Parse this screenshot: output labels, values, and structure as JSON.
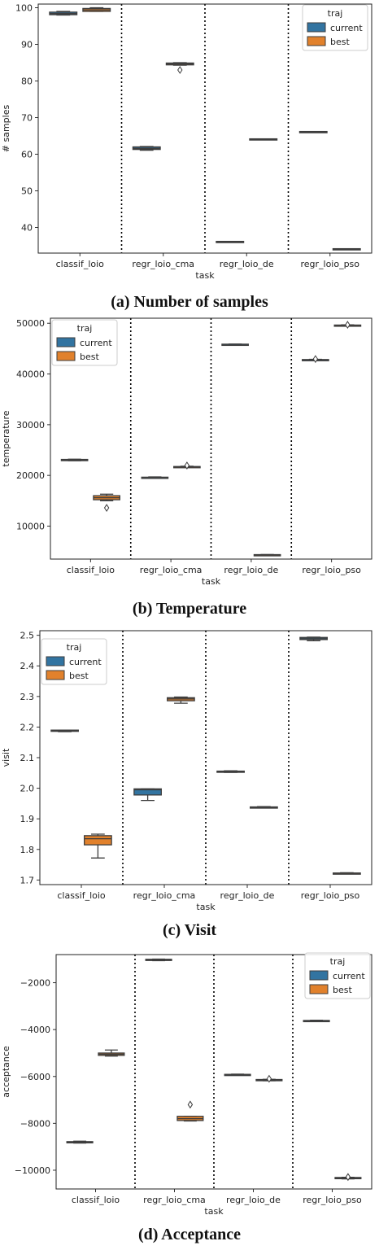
{
  "chart_data": [
    {
      "type": "box",
      "caption": "(a) Number of samples",
      "xlabel": "task",
      "ylabel": "# samples",
      "categories": [
        "classif_loio",
        "regr_loio_cma",
        "regr_loio_de",
        "regr_loio_pso"
      ],
      "ylim": [
        33,
        101
      ],
      "yticks": [
        40,
        50,
        60,
        70,
        80,
        90,
        100
      ],
      "yticklabels": [
        "40",
        "50",
        "60",
        "70",
        "80",
        "90",
        "100"
      ],
      "legend": {
        "title": "traj",
        "entries": [
          "current",
          "best"
        ],
        "position": "top-right"
      },
      "colors": {
        "current": "#3274a1",
        "best": "#e1812c"
      },
      "series": [
        {
          "name": "current",
          "boxes": [
            {
              "min": 98,
              "q1": 98.1,
              "median": 98.4,
              "q3": 98.8,
              "max": 99,
              "outliers": []
            },
            {
              "min": 61.1,
              "q1": 61.3,
              "median": 61.6,
              "q3": 62,
              "max": 62.1,
              "outliers": []
            },
            {
              "min": 36,
              "q1": 36,
              "median": 36.1,
              "q3": 36.2,
              "max": 36.2,
              "outliers": []
            },
            {
              "min": 66,
              "q1": 66,
              "median": 66.1,
              "q3": 66.2,
              "max": 66.2,
              "outliers": []
            }
          ]
        },
        {
          "name": "best",
          "boxes": [
            {
              "min": 99,
              "q1": 99,
              "median": 99.4,
              "q3": 99.8,
              "max": 100,
              "outliers": []
            },
            {
              "min": 84.3,
              "q1": 84.4,
              "median": 84.7,
              "q3": 84.9,
              "max": 85,
              "outliers": [
                83
              ]
            },
            {
              "min": 64,
              "q1": 64,
              "median": 64.1,
              "q3": 64.2,
              "max": 64.2,
              "outliers": []
            },
            {
              "min": 34,
              "q1": 34,
              "median": 34.1,
              "q3": 34.2,
              "max": 34.2,
              "outliers": []
            }
          ]
        }
      ]
    },
    {
      "type": "box",
      "caption": "(b) Temperature",
      "xlabel": "task",
      "ylabel": "temperature",
      "categories": [
        "classif_loio",
        "regr_loio_cma",
        "regr_loio_de",
        "regr_loio_pso"
      ],
      "ylim": [
        3500,
        51000
      ],
      "yticks": [
        10000,
        20000,
        30000,
        40000,
        50000
      ],
      "yticklabels": [
        "10000",
        "20000",
        "30000",
        "40000",
        "50000"
      ],
      "legend": {
        "title": "traj",
        "entries": [
          "current",
          "best"
        ],
        "position": "top-left"
      },
      "colors": {
        "current": "#3274a1",
        "best": "#e1812c"
      },
      "series": [
        {
          "name": "current",
          "boxes": [
            {
              "min": 22900,
              "q1": 22950,
              "median": 23050,
              "q3": 23150,
              "max": 23200,
              "outliers": []
            },
            {
              "min": 19500,
              "q1": 19550,
              "median": 19600,
              "q3": 19650,
              "max": 19700,
              "outliers": []
            },
            {
              "min": 45800,
              "q1": 45820,
              "median": 45850,
              "q3": 45880,
              "max": 45900,
              "outliers": []
            },
            {
              "min": 42700,
              "q1": 42750,
              "median": 42800,
              "q3": 42850,
              "max": 42900,
              "outliers": [
                42950
              ]
            }
          ]
        },
        {
          "name": "best",
          "boxes": [
            {
              "min": 15000,
              "q1": 15200,
              "median": 15600,
              "q3": 16000,
              "max": 16300,
              "outliers": [
                13600
              ]
            },
            {
              "min": 21600,
              "q1": 21650,
              "median": 21700,
              "q3": 21750,
              "max": 21800,
              "outliers": [
                21950
              ]
            },
            {
              "min": 4300,
              "q1": 4320,
              "median": 4350,
              "q3": 4380,
              "max": 4400,
              "outliers": []
            },
            {
              "min": 49500,
              "q1": 49550,
              "median": 49600,
              "q3": 49650,
              "max": 49700,
              "outliers": [
                49700
              ]
            }
          ]
        }
      ]
    },
    {
      "type": "box",
      "caption": "(c) Visit",
      "xlabel": "task",
      "ylabel": "visit",
      "categories": [
        "classif_loio",
        "regr_loio_cma",
        "regr_loio_de",
        "regr_loio_pso"
      ],
      "ylim": [
        1.685,
        2.515
      ],
      "yticks": [
        1.7,
        1.8,
        1.9,
        2.0,
        2.1,
        2.2,
        2.3,
        2.4,
        2.5
      ],
      "yticklabels": [
        "1.7",
        "1.8",
        "1.9",
        "2.0",
        "2.1",
        "2.2",
        "2.3",
        "2.4",
        "2.5"
      ],
      "legend": {
        "title": "traj",
        "entries": [
          "current",
          "best"
        ],
        "position": "upper-left"
      },
      "colors": {
        "current": "#3274a1",
        "best": "#e1812c"
      },
      "series": [
        {
          "name": "current",
          "boxes": [
            {
              "min": 2.185,
              "q1": 2.186,
              "median": 2.188,
              "q3": 2.19,
              "max": 2.19,
              "outliers": []
            },
            {
              "min": 1.96,
              "q1": 1.978,
              "median": 1.995,
              "q3": 1.998,
              "max": 1.998,
              "outliers": []
            },
            {
              "min": 2.052,
              "q1": 2.053,
              "median": 2.055,
              "q3": 2.056,
              "max": 2.057,
              "outliers": []
            },
            {
              "min": 2.482,
              "q1": 2.486,
              "median": 2.489,
              "q3": 2.493,
              "max": 2.494,
              "outliers": []
            }
          ]
        },
        {
          "name": "best",
          "boxes": [
            {
              "min": 1.772,
              "q1": 1.815,
              "median": 1.835,
              "q3": 1.845,
              "max": 1.85,
              "outliers": []
            },
            {
              "min": 2.278,
              "q1": 2.286,
              "median": 2.292,
              "q3": 2.296,
              "max": 2.298,
              "outliers": []
            },
            {
              "min": 1.936,
              "q1": 1.937,
              "median": 1.938,
              "q3": 1.939,
              "max": 1.94,
              "outliers": []
            },
            {
              "min": 1.72,
              "q1": 1.721,
              "median": 1.722,
              "q3": 1.723,
              "max": 1.724,
              "outliers": []
            }
          ]
        }
      ]
    },
    {
      "type": "box",
      "caption": "(d) Acceptance",
      "xlabel": "task",
      "ylabel": "acceptance",
      "categories": [
        "classif_loio",
        "regr_loio_cma",
        "regr_loio_de",
        "regr_loio_pso"
      ],
      "ylim": [
        -10800,
        -800
      ],
      "yticks": [
        -10000,
        -8000,
        -6000,
        -4000,
        -2000
      ],
      "yticklabels": [
        "−10000",
        "−8000",
        "−6000",
        "−4000",
        "−2000"
      ],
      "legend": {
        "title": "traj",
        "entries": [
          "current",
          "best"
        ],
        "position": "top-right"
      },
      "colors": {
        "current": "#3274a1",
        "best": "#e1812c"
      },
      "series": [
        {
          "name": "current",
          "boxes": [
            {
              "min": -8840,
              "q1": -8820,
              "median": -8800,
              "q3": -8780,
              "max": -8760,
              "outliers": []
            },
            {
              "min": -1060,
              "q1": -1040,
              "median": -1020,
              "q3": -1000,
              "max": -990,
              "outliers": []
            },
            {
              "min": -5940,
              "q1": -5930,
              "median": -5920,
              "q3": -5910,
              "max": -5900,
              "outliers": []
            },
            {
              "min": -3640,
              "q1": -3630,
              "median": -3620,
              "q3": -3610,
              "max": -3600,
              "outliers": []
            }
          ]
        },
        {
          "name": "best",
          "boxes": [
            {
              "min": -5130,
              "q1": -5100,
              "median": -5050,
              "q3": -5000,
              "max": -4870,
              "outliers": []
            },
            {
              "min": -7900,
              "q1": -7880,
              "median": -7800,
              "q3": -7700,
              "max": -7700,
              "outliers": [
                -7200
              ]
            },
            {
              "min": -6180,
              "q1": -6170,
              "median": -6150,
              "q3": -6130,
              "max": -6120,
              "outliers": [
                -6100
              ]
            },
            {
              "min": -10370,
              "q1": -10350,
              "median": -10330,
              "q3": -10310,
              "max": -10300,
              "outliers": [
                -10290
              ]
            }
          ]
        }
      ]
    }
  ]
}
